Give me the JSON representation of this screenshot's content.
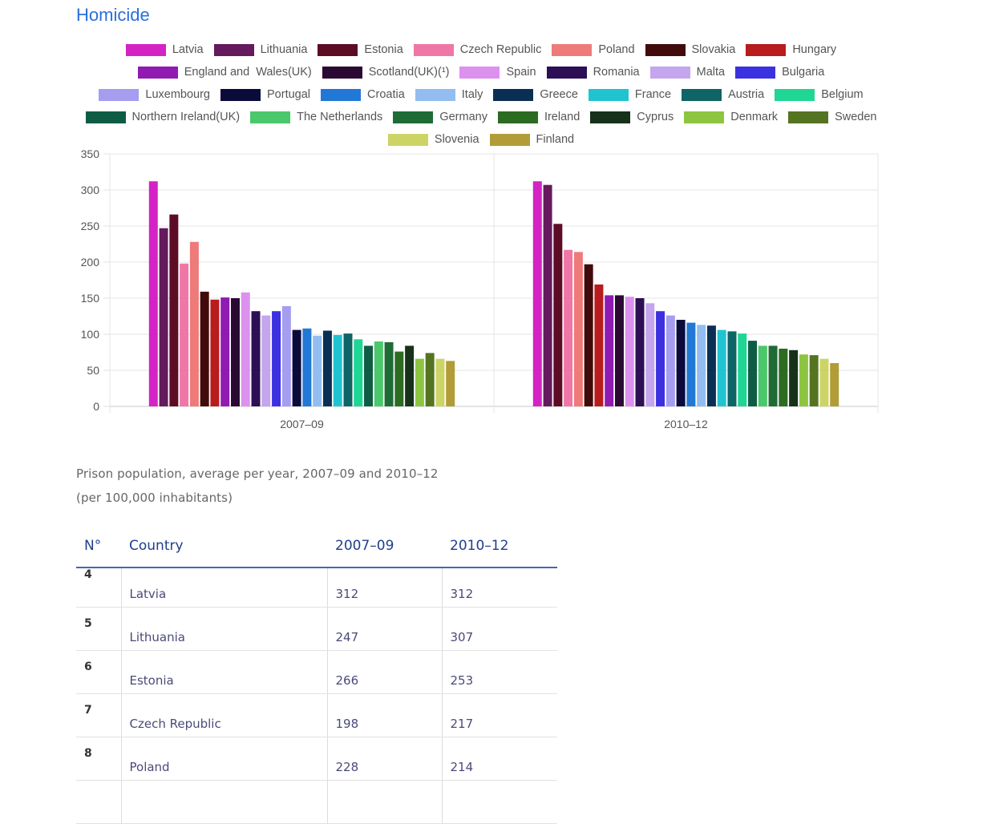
{
  "page": {
    "title": "Homicide"
  },
  "chart_data": {
    "type": "bar",
    "categories": [
      "2007–09",
      "2010–12"
    ],
    "ylim": [
      0,
      350
    ],
    "yticks": [
      0,
      50,
      100,
      150,
      200,
      250,
      300,
      350
    ],
    "grid": true,
    "legend_position": "top",
    "series": [
      {
        "name": "Latvia",
        "color": "#d323c4",
        "values": [
          312,
          312
        ]
      },
      {
        "name": "Lithuania",
        "color": "#651a5d",
        "values": [
          247,
          307
        ]
      },
      {
        "name": "Estonia",
        "color": "#5c0d25",
        "values": [
          266,
          253
        ]
      },
      {
        "name": "Czech Republic",
        "color": "#ef77a6",
        "values": [
          198,
          217
        ]
      },
      {
        "name": "Poland",
        "color": "#ee7a7a",
        "values": [
          228,
          214
        ]
      },
      {
        "name": "Slovakia",
        "color": "#420b0b",
        "values": [
          159,
          197
        ]
      },
      {
        "name": "Hungary",
        "color": "#b81c1c",
        "values": [
          148,
          169
        ]
      },
      {
        "name": "England and  Wales(UK)",
        "color": "#8f1bb3",
        "values": [
          151,
          154
        ]
      },
      {
        "name": "Scotland(UK)(¹)",
        "color": "#2a0a33",
        "values": [
          150,
          154
        ]
      },
      {
        "name": "Spain",
        "color": "#dc91ee",
        "values": [
          158,
          152
        ]
      },
      {
        "name": "Romania",
        "color": "#2c0f55",
        "values": [
          132,
          150
        ]
      },
      {
        "name": "Malta",
        "color": "#c4a5ee",
        "values": [
          126,
          143
        ]
      },
      {
        "name": "Bulgaria",
        "color": "#3b31e0",
        "values": [
          132,
          132
        ]
      },
      {
        "name": "Luxembourg",
        "color": "#a59df0",
        "values": [
          139,
          126
        ]
      },
      {
        "name": "Portugal",
        "color": "#0b0b3b",
        "values": [
          106,
          120
        ]
      },
      {
        "name": "Croatia",
        "color": "#2178d6",
        "values": [
          108,
          116
        ]
      },
      {
        "name": "Italy",
        "color": "#93bdf0",
        "values": [
          98,
          113
        ]
      },
      {
        "name": "Greece",
        "color": "#0b2f54",
        "values": [
          105,
          112
        ]
      },
      {
        "name": "France",
        "color": "#20c4d1",
        "values": [
          99,
          106
        ]
      },
      {
        "name": "Austria",
        "color": "#0f6466",
        "values": [
          101,
          104
        ]
      },
      {
        "name": "Belgium",
        "color": "#1fd695",
        "values": [
          93,
          101
        ]
      },
      {
        "name": "Northern Ireland(UK)",
        "color": "#0f5c45",
        "values": [
          84,
          91
        ]
      },
      {
        "name": "The Netherlands",
        "color": "#4ac86b",
        "values": [
          90,
          84
        ]
      },
      {
        "name": "Germany",
        "color": "#1f6b36",
        "values": [
          89,
          84
        ]
      },
      {
        "name": "Ireland",
        "color": "#2c6b22",
        "values": [
          76,
          80
        ]
      },
      {
        "name": "Cyprus",
        "color": "#17311a",
        "values": [
          84,
          78
        ]
      },
      {
        "name": "Denmark",
        "color": "#8dc540",
        "values": [
          66,
          72
        ]
      },
      {
        "name": "Sweden",
        "color": "#557421",
        "values": [
          74,
          71
        ]
      },
      {
        "name": "Slovenia",
        "color": "#ccd466",
        "values": [
          66,
          66
        ]
      },
      {
        "name": "Finland",
        "color": "#b29c37",
        "values": [
          63,
          60
        ]
      }
    ]
  },
  "caption": {
    "line1": "Prison population, average per year, 2007–09 and 2010–12",
    "line2": "(per 100,000 inhabitants)"
  },
  "table": {
    "headers": [
      "N°",
      "Country",
      "2007–09",
      "2010–12"
    ],
    "rows": [
      [
        "4",
        "Latvia",
        "312",
        "312"
      ],
      [
        "5",
        "Lithuania",
        "247",
        "307"
      ],
      [
        "6",
        "Estonia",
        "266",
        "253"
      ],
      [
        "7",
        "Czech Republic",
        "198",
        "217"
      ],
      [
        "8",
        "Poland",
        "228",
        "214"
      ],
      [
        "",
        "",
        "",
        ""
      ]
    ]
  }
}
